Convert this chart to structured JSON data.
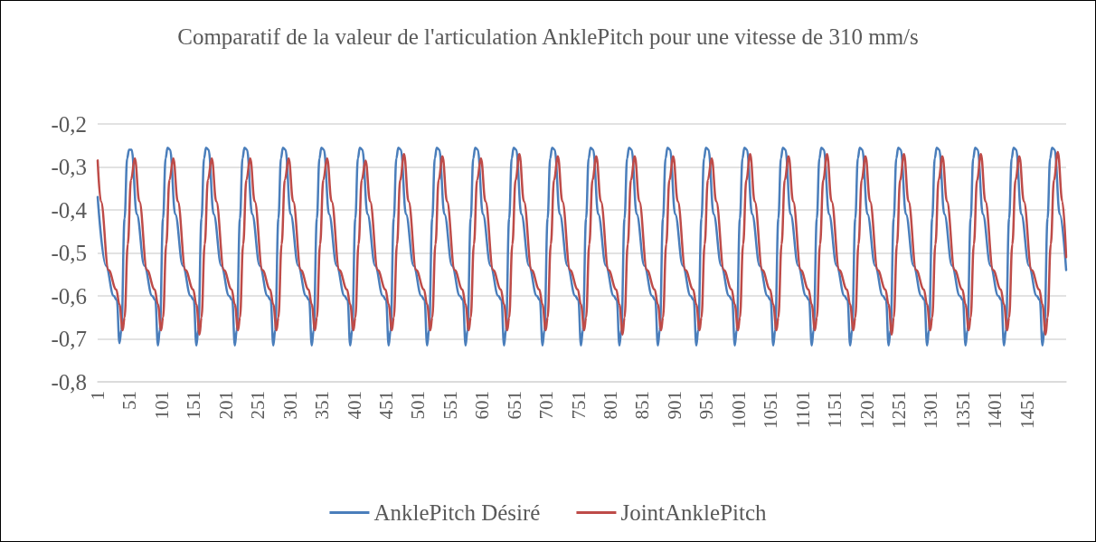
{
  "chart_data": {
    "type": "line",
    "title": "Comparatif de la valeur de l'articulation AnklePitch pour une vitesse de 310 mm/s",
    "xlim": [
      1,
      1512
    ],
    "xticks": [
      1,
      51,
      101,
      151,
      201,
      251,
      301,
      351,
      401,
      451,
      501,
      551,
      601,
      651,
      701,
      751,
      801,
      851,
      901,
      951,
      1001,
      1051,
      1101,
      1151,
      1201,
      1251,
      1301,
      1351,
      1401,
      1451
    ],
    "ylim": [
      -0.8,
      -0.2
    ],
    "yticks": [
      {
        "value": -0.2,
        "label": "-0,2"
      },
      {
        "value": -0.3,
        "label": "-0,3"
      },
      {
        "value": -0.4,
        "label": "-0,4"
      },
      {
        "value": -0.5,
        "label": "-0,5"
      },
      {
        "value": -0.6,
        "label": "-0,6"
      },
      {
        "value": -0.7,
        "label": "-0,7"
      },
      {
        "value": -0.8,
        "label": "-0,8"
      }
    ],
    "grid": "y",
    "legend": "bottom",
    "marker": "none",
    "series": [
      {
        "name": "AnklePitch Désiré",
        "color": "#4a7ebb",
        "x": [
          1,
          14,
          26,
          31,
          35,
          38,
          43,
          47,
          50,
          54,
          62,
          74,
          86,
          91,
          95,
          98,
          103,
          107,
          110,
          114,
          122,
          134,
          146,
          151,
          155,
          158,
          163,
          167,
          170,
          174,
          182,
          194,
          206,
          211,
          215,
          218,
          223,
          227,
          230,
          234,
          242,
          254,
          266,
          271,
          275,
          278,
          283,
          287,
          290,
          294,
          302,
          314,
          326,
          331,
          335,
          338,
          343,
          347,
          350,
          354,
          362,
          374,
          386,
          391,
          395,
          398,
          403,
          407,
          410,
          414,
          422,
          434,
          446,
          451,
          455,
          458,
          463,
          467,
          470,
          474,
          482,
          494,
          506,
          511,
          515,
          518,
          523,
          527,
          530,
          534,
          542,
          554,
          566,
          571,
          575,
          578,
          583,
          587,
          590,
          594,
          602,
          614,
          626,
          631,
          635,
          638,
          643,
          647,
          650,
          654,
          662,
          674,
          686,
          691,
          695,
          698,
          703,
          707,
          710,
          714,
          722,
          734,
          746,
          751,
          755,
          758,
          763,
          767,
          770,
          774,
          782,
          794,
          806,
          811,
          815,
          818,
          823,
          827,
          830,
          834,
          842,
          854,
          866,
          871,
          875,
          878,
          883,
          887,
          890,
          894,
          902,
          914,
          926,
          931,
          935,
          938,
          943,
          947,
          950,
          954,
          962,
          974,
          986,
          991,
          995,
          998,
          1003,
          1007,
          1010,
          1014,
          1022,
          1034,
          1046,
          1051,
          1055,
          1058,
          1063,
          1067,
          1070,
          1074,
          1082,
          1094,
          1106,
          1111,
          1115,
          1118,
          1123,
          1127,
          1130,
          1134,
          1142,
          1154,
          1166,
          1171,
          1175,
          1178,
          1183,
          1187,
          1190,
          1194,
          1202,
          1214,
          1226,
          1231,
          1235,
          1238,
          1243,
          1247,
          1250,
          1254,
          1262,
          1274,
          1286,
          1291,
          1295,
          1298,
          1303,
          1307,
          1310,
          1314,
          1322,
          1334,
          1346,
          1351,
          1355,
          1358,
          1363,
          1367,
          1370,
          1374,
          1382,
          1394,
          1406,
          1411,
          1415,
          1418,
          1423,
          1427,
          1430,
          1434,
          1442,
          1454,
          1466,
          1471,
          1475,
          1478,
          1483,
          1487,
          1490,
          1494,
          1502,
          1512
        ],
        "values": [
          -0.37,
          -0.53,
          -0.6,
          -0.61,
          -0.71,
          -0.68,
          -0.42,
          -0.28,
          -0.26,
          -0.26,
          -0.41,
          -0.53,
          -0.6,
          -0.61,
          -0.715,
          -0.68,
          -0.42,
          -0.28,
          -0.255,
          -0.26,
          -0.41,
          -0.53,
          -0.6,
          -0.61,
          -0.715,
          -0.68,
          -0.42,
          -0.28,
          -0.255,
          -0.26,
          -0.41,
          -0.53,
          -0.6,
          -0.61,
          -0.715,
          -0.68,
          -0.42,
          -0.28,
          -0.255,
          -0.26,
          -0.41,
          -0.53,
          -0.6,
          -0.61,
          -0.715,
          -0.68,
          -0.42,
          -0.28,
          -0.255,
          -0.26,
          -0.41,
          -0.53,
          -0.6,
          -0.61,
          -0.715,
          -0.68,
          -0.42,
          -0.28,
          -0.255,
          -0.26,
          -0.41,
          -0.53,
          -0.6,
          -0.61,
          -0.715,
          -0.68,
          -0.42,
          -0.28,
          -0.255,
          -0.26,
          -0.41,
          -0.53,
          -0.6,
          -0.61,
          -0.715,
          -0.68,
          -0.42,
          -0.28,
          -0.255,
          -0.26,
          -0.41,
          -0.53,
          -0.6,
          -0.61,
          -0.715,
          -0.68,
          -0.42,
          -0.28,
          -0.255,
          -0.26,
          -0.41,
          -0.53,
          -0.6,
          -0.61,
          -0.715,
          -0.68,
          -0.42,
          -0.28,
          -0.255,
          -0.26,
          -0.41,
          -0.53,
          -0.6,
          -0.61,
          -0.715,
          -0.68,
          -0.42,
          -0.28,
          -0.255,
          -0.26,
          -0.41,
          -0.53,
          -0.6,
          -0.61,
          -0.715,
          -0.68,
          -0.42,
          -0.28,
          -0.255,
          -0.26,
          -0.41,
          -0.53,
          -0.6,
          -0.61,
          -0.715,
          -0.68,
          -0.42,
          -0.28,
          -0.255,
          -0.26,
          -0.41,
          -0.53,
          -0.6,
          -0.61,
          -0.715,
          -0.68,
          -0.42,
          -0.28,
          -0.255,
          -0.26,
          -0.41,
          -0.53,
          -0.6,
          -0.61,
          -0.715,
          -0.68,
          -0.42,
          -0.28,
          -0.255,
          -0.26,
          -0.41,
          -0.53,
          -0.6,
          -0.61,
          -0.715,
          -0.68,
          -0.42,
          -0.28,
          -0.255,
          -0.26,
          -0.41,
          -0.53,
          -0.6,
          -0.61,
          -0.715,
          -0.68,
          -0.42,
          -0.28,
          -0.255,
          -0.26,
          -0.41,
          -0.53,
          -0.6,
          -0.61,
          -0.715,
          -0.68,
          -0.42,
          -0.28,
          -0.255,
          -0.26,
          -0.41,
          -0.53,
          -0.6,
          -0.61,
          -0.715,
          -0.68,
          -0.42,
          -0.28,
          -0.255,
          -0.26,
          -0.41,
          -0.53,
          -0.6,
          -0.61,
          -0.715,
          -0.68,
          -0.42,
          -0.28,
          -0.255,
          -0.26,
          -0.41,
          -0.53,
          -0.6,
          -0.61,
          -0.715,
          -0.68,
          -0.42,
          -0.28,
          -0.255,
          -0.26,
          -0.41,
          -0.53,
          -0.6,
          -0.61,
          -0.715,
          -0.68,
          -0.42,
          -0.28,
          -0.255,
          -0.26,
          -0.41,
          -0.53,
          -0.6,
          -0.61,
          -0.715,
          -0.68,
          -0.42,
          -0.28,
          -0.255,
          -0.26,
          -0.41,
          -0.53,
          -0.6,
          -0.61,
          -0.715,
          -0.68,
          -0.42,
          -0.28,
          -0.255,
          -0.26,
          -0.41,
          -0.53,
          -0.6,
          -0.61,
          -0.715,
          -0.68,
          -0.42,
          -0.28,
          -0.255,
          -0.26,
          -0.41,
          -0.54
        ]
      },
      {
        "name": "JointAnklePitch",
        "color": "#be4b48",
        "x": [
          1,
          6,
          18,
          30,
          35,
          40,
          43,
          48,
          53,
          59,
          66,
          78,
          90,
          95,
          100,
          103,
          108,
          113,
          119,
          126,
          138,
          150,
          155,
          160,
          163,
          168,
          173,
          179,
          186,
          198,
          210,
          215,
          220,
          223,
          228,
          233,
          239,
          246,
          258,
          270,
          275,
          280,
          283,
          288,
          293,
          299,
          306,
          318,
          330,
          335,
          340,
          343,
          348,
          353,
          359,
          366,
          378,
          390,
          395,
          400,
          403,
          408,
          413,
          419,
          426,
          438,
          450,
          455,
          460,
          463,
          468,
          473,
          479,
          486,
          498,
          510,
          515,
          520,
          523,
          528,
          533,
          539,
          546,
          558,
          570,
          575,
          580,
          583,
          588,
          593,
          599,
          606,
          618,
          630,
          635,
          640,
          643,
          648,
          653,
          659,
          666,
          678,
          690,
          695,
          700,
          703,
          708,
          713,
          719,
          726,
          738,
          750,
          755,
          760,
          763,
          768,
          773,
          779,
          786,
          798,
          810,
          815,
          820,
          823,
          828,
          833,
          839,
          846,
          858,
          870,
          875,
          880,
          883,
          888,
          893,
          899,
          906,
          918,
          930,
          935,
          940,
          943,
          948,
          953,
          959,
          966,
          978,
          990,
          995,
          1000,
          1003,
          1008,
          1013,
          1019,
          1026,
          1038,
          1050,
          1055,
          1060,
          1063,
          1068,
          1073,
          1079,
          1086,
          1098,
          1110,
          1115,
          1120,
          1123,
          1128,
          1133,
          1139,
          1146,
          1158,
          1170,
          1175,
          1180,
          1183,
          1188,
          1193,
          1199,
          1206,
          1218,
          1230,
          1235,
          1240,
          1243,
          1248,
          1253,
          1259,
          1266,
          1278,
          1290,
          1295,
          1300,
          1303,
          1308,
          1313,
          1319,
          1326,
          1338,
          1350,
          1355,
          1360,
          1363,
          1368,
          1373,
          1379,
          1386,
          1398,
          1410,
          1415,
          1420,
          1423,
          1428,
          1433,
          1439,
          1446,
          1458,
          1470,
          1475,
          1480,
          1483,
          1488,
          1493,
          1499,
          1506,
          1512
        ],
        "values": [
          -0.285,
          -0.38,
          -0.54,
          -0.585,
          -0.62,
          -0.68,
          -0.65,
          -0.48,
          -0.33,
          -0.28,
          -0.38,
          -0.54,
          -0.585,
          -0.62,
          -0.68,
          -0.65,
          -0.48,
          -0.33,
          -0.28,
          -0.38,
          -0.54,
          -0.585,
          -0.62,
          -0.69,
          -0.65,
          -0.48,
          -0.33,
          -0.28,
          -0.38,
          -0.54,
          -0.585,
          -0.62,
          -0.68,
          -0.65,
          -0.48,
          -0.33,
          -0.28,
          -0.38,
          -0.54,
          -0.585,
          -0.62,
          -0.68,
          -0.65,
          -0.48,
          -0.33,
          -0.28,
          -0.38,
          -0.54,
          -0.585,
          -0.62,
          -0.68,
          -0.65,
          -0.48,
          -0.33,
          -0.28,
          -0.38,
          -0.54,
          -0.585,
          -0.62,
          -0.68,
          -0.65,
          -0.48,
          -0.33,
          -0.285,
          -0.38,
          -0.54,
          -0.585,
          -0.62,
          -0.68,
          -0.65,
          -0.48,
          -0.33,
          -0.27,
          -0.38,
          -0.54,
          -0.585,
          -0.62,
          -0.68,
          -0.65,
          -0.48,
          -0.33,
          -0.275,
          -0.38,
          -0.54,
          -0.585,
          -0.62,
          -0.68,
          -0.65,
          -0.48,
          -0.33,
          -0.28,
          -0.38,
          -0.54,
          -0.585,
          -0.62,
          -0.68,
          -0.65,
          -0.48,
          -0.33,
          -0.27,
          -0.38,
          -0.54,
          -0.585,
          -0.62,
          -0.68,
          -0.65,
          -0.48,
          -0.33,
          -0.275,
          -0.38,
          -0.54,
          -0.585,
          -0.62,
          -0.68,
          -0.65,
          -0.48,
          -0.33,
          -0.275,
          -0.38,
          -0.54,
          -0.585,
          -0.62,
          -0.69,
          -0.65,
          -0.48,
          -0.33,
          -0.275,
          -0.38,
          -0.54,
          -0.585,
          -0.62,
          -0.68,
          -0.65,
          -0.48,
          -0.33,
          -0.275,
          -0.38,
          -0.54,
          -0.585,
          -0.62,
          -0.68,
          -0.65,
          -0.48,
          -0.33,
          -0.28,
          -0.38,
          -0.54,
          -0.585,
          -0.62,
          -0.68,
          -0.65,
          -0.48,
          -0.33,
          -0.27,
          -0.38,
          -0.54,
          -0.585,
          -0.62,
          -0.68,
          -0.65,
          -0.48,
          -0.33,
          -0.275,
          -0.38,
          -0.54,
          -0.585,
          -0.62,
          -0.68,
          -0.65,
          -0.48,
          -0.33,
          -0.27,
          -0.38,
          -0.54,
          -0.585,
          -0.62,
          -0.68,
          -0.65,
          -0.48,
          -0.33,
          -0.275,
          -0.38,
          -0.54,
          -0.585,
          -0.62,
          -0.69,
          -0.65,
          -0.48,
          -0.33,
          -0.27,
          -0.38,
          -0.54,
          -0.585,
          -0.62,
          -0.68,
          -0.65,
          -0.48,
          -0.33,
          -0.275,
          -0.38,
          -0.54,
          -0.585,
          -0.62,
          -0.68,
          -0.65,
          -0.48,
          -0.33,
          -0.27,
          -0.38,
          -0.54,
          -0.585,
          -0.62,
          -0.68,
          -0.65,
          -0.48,
          -0.33,
          -0.275,
          -0.38,
          -0.54,
          -0.585,
          -0.62,
          -0.69,
          -0.65,
          -0.48,
          -0.33,
          -0.265,
          -0.38,
          -0.51
        ]
      }
    ]
  }
}
